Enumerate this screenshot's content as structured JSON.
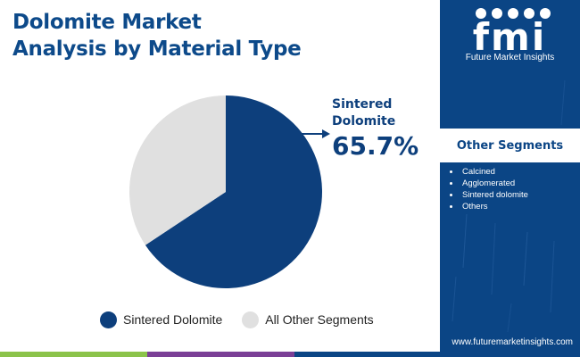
{
  "title": {
    "line1": "Dolomite Market",
    "line2": "Analysis by Material Type"
  },
  "chart_data": {
    "type": "pie",
    "title": "Dolomite Market Analysis by Material Type",
    "slices": [
      {
        "label": "Sintered Dolomite",
        "value": 65.7,
        "color": "#0d3f7c"
      },
      {
        "label": "All Other Segments",
        "value": 34.3,
        "color": "#e0e0e0"
      }
    ],
    "annotation": {
      "label_line1": "Sintered",
      "label_line2": "Dolomite",
      "value": "65.7%"
    },
    "legend_position": "bottom"
  },
  "legend": [
    {
      "label": "Sintered Dolomite",
      "color": "#0d3f7c"
    },
    {
      "label": "All Other Segments",
      "color": "#e0e0e0"
    }
  ],
  "sidebar": {
    "logo_text": "fmi",
    "brand": "Future Market Insights",
    "segments_title": "Other Segments",
    "segments": [
      "Calcined",
      "Agglomerated",
      "Sintered dolomite",
      "Others"
    ],
    "website": "www.futuremarketinsights.com"
  },
  "colors": {
    "title": "#0d4a8a",
    "panel": "#0b4585",
    "bar_green": "#8bc34a",
    "bar_purple": "#7b3f96",
    "bar_blue": "#0b4585"
  }
}
